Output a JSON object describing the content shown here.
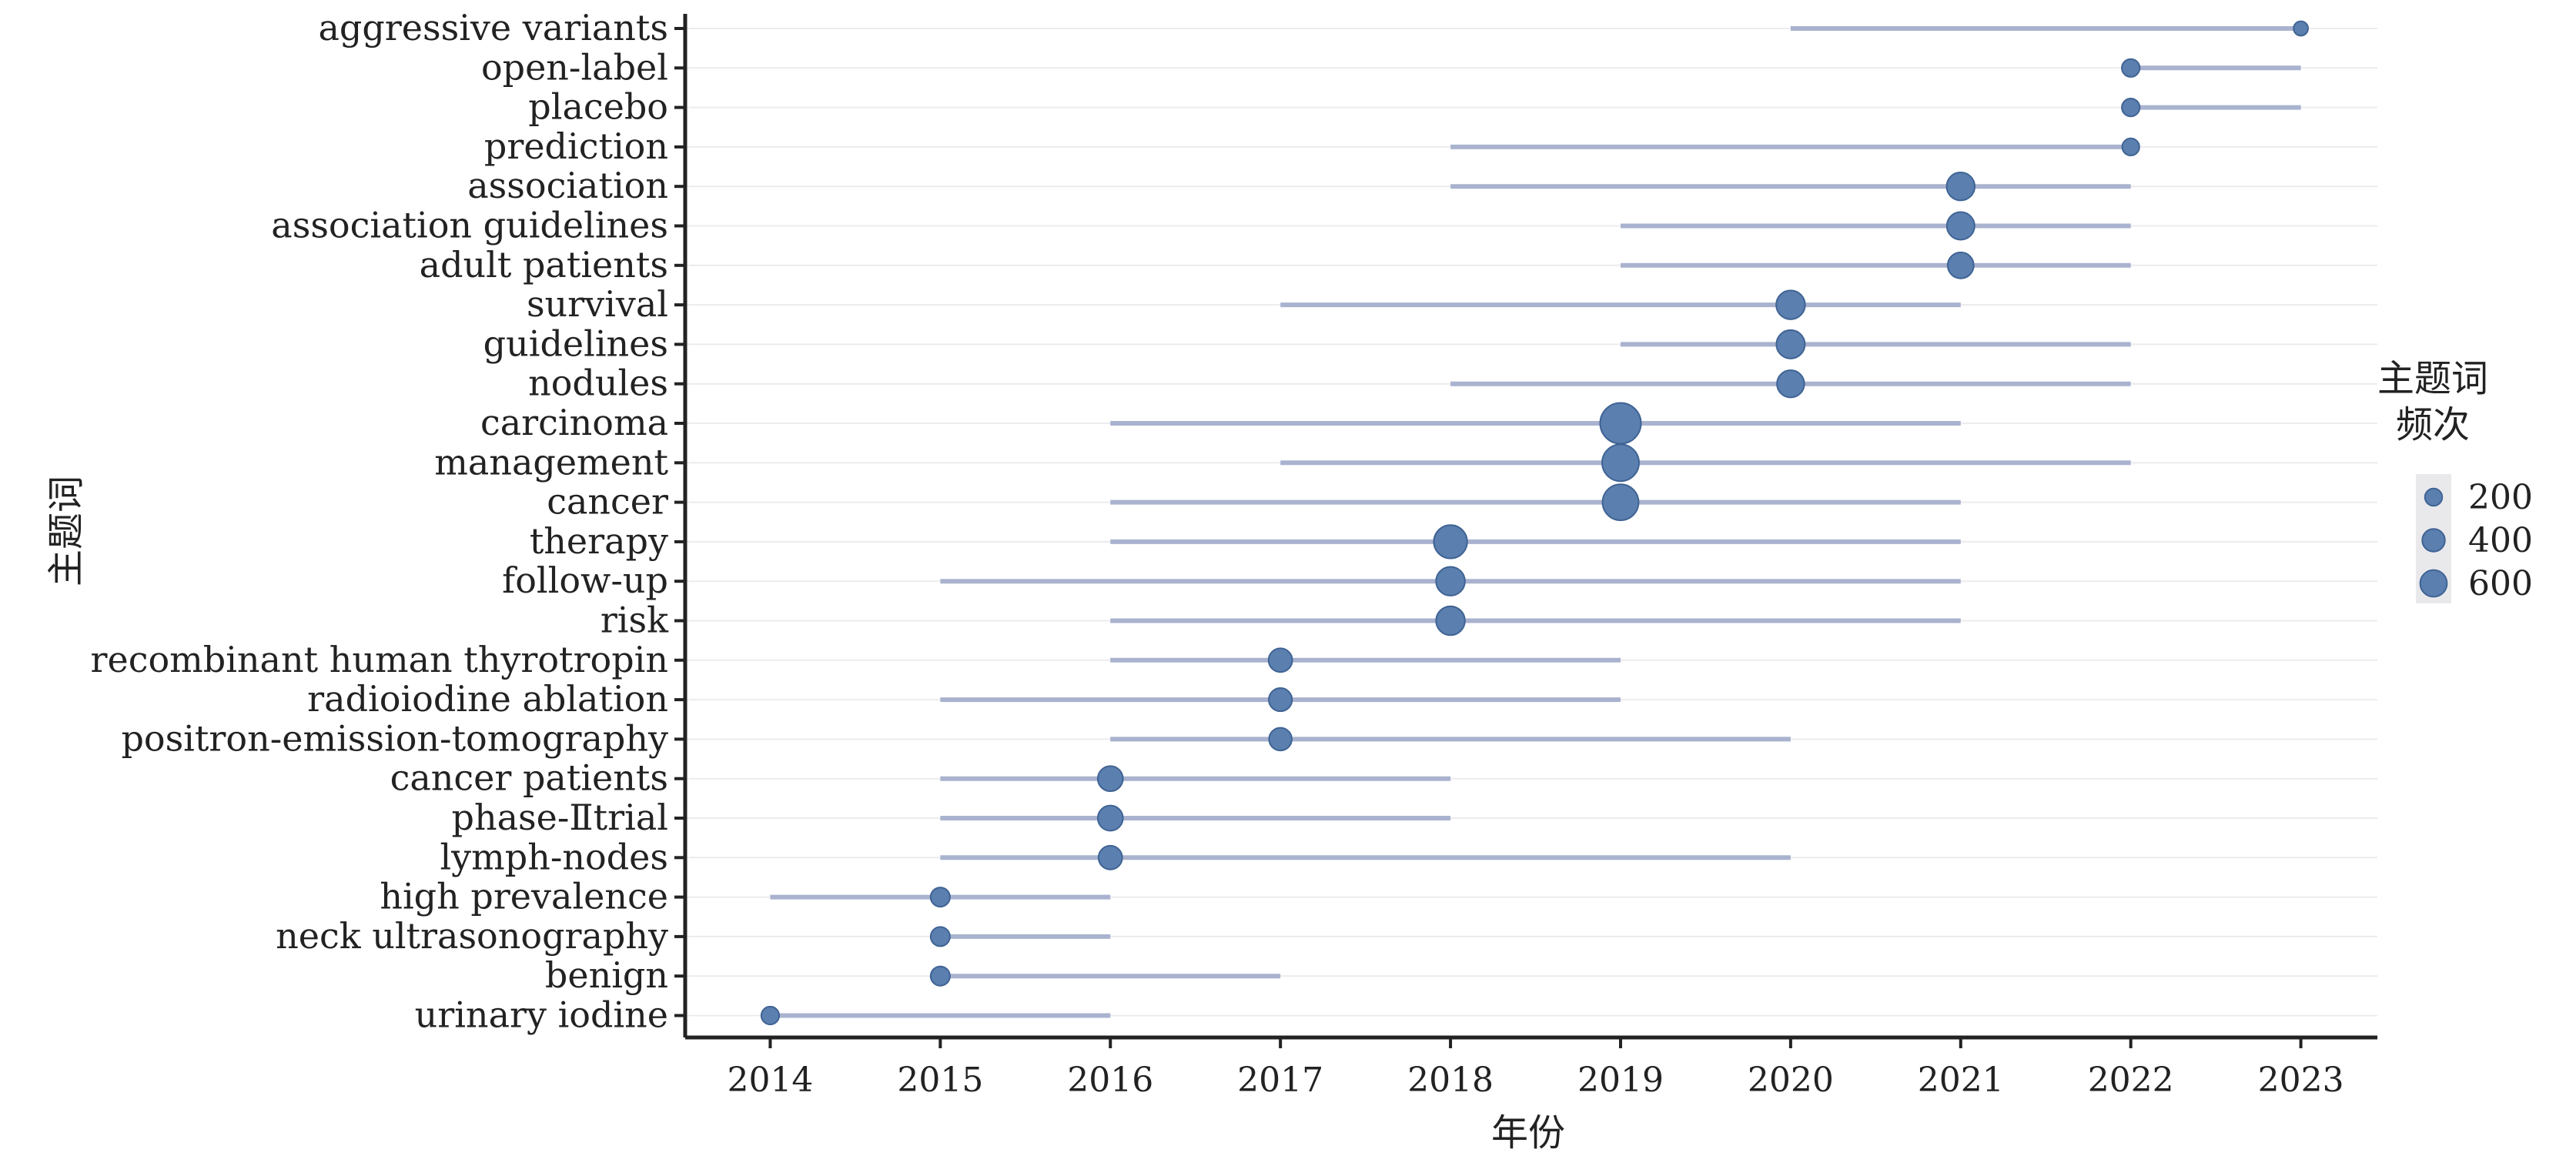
{
  "chart_data": {
    "type": "scatter",
    "subtype": "burst-timeline",
    "xlabel": "年份",
    "ylabel": "主题词",
    "x_ticks": [
      2014,
      2015,
      2016,
      2017,
      2018,
      2019,
      2020,
      2021,
      2022,
      2023
    ],
    "xlim": [
      2013.5,
      2023.45
    ],
    "grid": "horizontal",
    "colors": {
      "span": "#a9b3cf",
      "point": "#5b7fae",
      "point_edge": "#3f6394",
      "axis": "#222222"
    },
    "keywords": [
      {
        "term": "aggressive variants",
        "start": 2020,
        "end": 2023,
        "peak": 2023,
        "freq": 40
      },
      {
        "term": "open-label",
        "start": 2022,
        "end": 2023,
        "peak": 2022,
        "freq": 80
      },
      {
        "term": "placebo",
        "start": 2022,
        "end": 2023,
        "peak": 2022,
        "freq": 80
      },
      {
        "term": "prediction",
        "start": 2018,
        "end": 2022,
        "peak": 2022,
        "freq": 70
      },
      {
        "term": "association",
        "start": 2018,
        "end": 2022,
        "peak": 2021,
        "freq": 280
      },
      {
        "term": "association guidelines",
        "start": 2019,
        "end": 2022,
        "peak": 2021,
        "freq": 270
      },
      {
        "term": "adult patients",
        "start": 2019,
        "end": 2022,
        "peak": 2021,
        "freq": 230
      },
      {
        "term": "survival",
        "start": 2017,
        "end": 2021,
        "peak": 2020,
        "freq": 300
      },
      {
        "term": "guidelines",
        "start": 2019,
        "end": 2022,
        "peak": 2020,
        "freq": 290
      },
      {
        "term": "nodules",
        "start": 2018,
        "end": 2022,
        "peak": 2020,
        "freq": 260
      },
      {
        "term": "carcinoma",
        "start": 2016,
        "end": 2021,
        "peak": 2019,
        "freq": 700
      },
      {
        "term": "management",
        "start": 2017,
        "end": 2022,
        "peak": 2019,
        "freq": 550
      },
      {
        "term": "cancer",
        "start": 2016,
        "end": 2021,
        "peak": 2019,
        "freq": 520
      },
      {
        "term": "therapy",
        "start": 2016,
        "end": 2021,
        "peak": 2018,
        "freq": 430
      },
      {
        "term": "follow-up",
        "start": 2015,
        "end": 2021,
        "peak": 2018,
        "freq": 300
      },
      {
        "term": "risk",
        "start": 2016,
        "end": 2021,
        "peak": 2018,
        "freq": 300
      },
      {
        "term": "recombinant human thyrotropin",
        "start": 2016,
        "end": 2019,
        "peak": 2017,
        "freq": 180
      },
      {
        "term": "radioiodine ablation",
        "start": 2015,
        "end": 2019,
        "peak": 2017,
        "freq": 170
      },
      {
        "term": "positron-emission-tomography",
        "start": 2016,
        "end": 2020,
        "peak": 2017,
        "freq": 160
      },
      {
        "term": "cancer patients",
        "start": 2015,
        "end": 2018,
        "peak": 2016,
        "freq": 210
      },
      {
        "term": "phase-Ⅱtrial",
        "start": 2015,
        "end": 2018,
        "peak": 2016,
        "freq": 210
      },
      {
        "term": "lymph-nodes",
        "start": 2015,
        "end": 2020,
        "peak": 2016,
        "freq": 180
      },
      {
        "term": "high prevalence",
        "start": 2014,
        "end": 2016,
        "peak": 2015,
        "freq": 100
      },
      {
        "term": "neck ultrasonography",
        "start": 2015,
        "end": 2016,
        "peak": 2015,
        "freq": 100
      },
      {
        "term": "benign",
        "start": 2015,
        "end": 2017,
        "peak": 2015,
        "freq": 100
      },
      {
        "term": "urinary iodine",
        "start": 2014,
        "end": 2016,
        "peak": 2014,
        "freq": 80
      }
    ],
    "legend": {
      "title_line1": "主题词",
      "title_line2": "频次",
      "position": "right",
      "items": [
        {
          "label": "200",
          "value": 200
        },
        {
          "label": "400",
          "value": 400
        },
        {
          "label": "600",
          "value": 600
        }
      ]
    }
  }
}
